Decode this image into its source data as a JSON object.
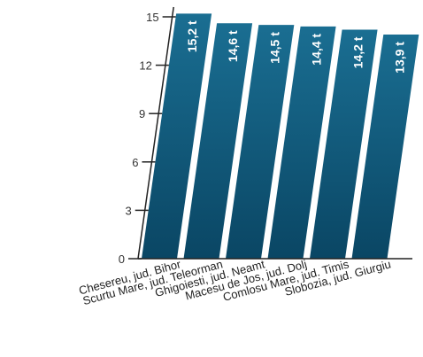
{
  "chart_data": {
    "type": "bar",
    "title": "",
    "xlabel": "",
    "ylabel": "",
    "categories": [
      "Chesereu, jud. Bihor",
      "Scurtu Mare, jud. Teleorman",
      "Ghigoiesti, jud. Neamt",
      "Macesu de Jos, jud. Dolj",
      "Comlosu Mare, jud. Timis",
      "Slobozia, jud. Giurgiu"
    ],
    "values": [
      15.2,
      14.6,
      14.5,
      14.4,
      14.2,
      13.9
    ],
    "data_labels": [
      "15,2 t",
      "14,6 t",
      "14,5 t",
      "14,4 t",
      "14,2 t",
      "13,9 t"
    ],
    "ylim": [
      0,
      15
    ],
    "yticks": [
      0,
      3,
      6,
      9,
      12,
      15
    ],
    "grid": false,
    "style": "3d-slanted",
    "colors": {
      "bar_top": "#1a6e92",
      "bar_bottom": "#0a4664",
      "axis": "#222222"
    }
  }
}
